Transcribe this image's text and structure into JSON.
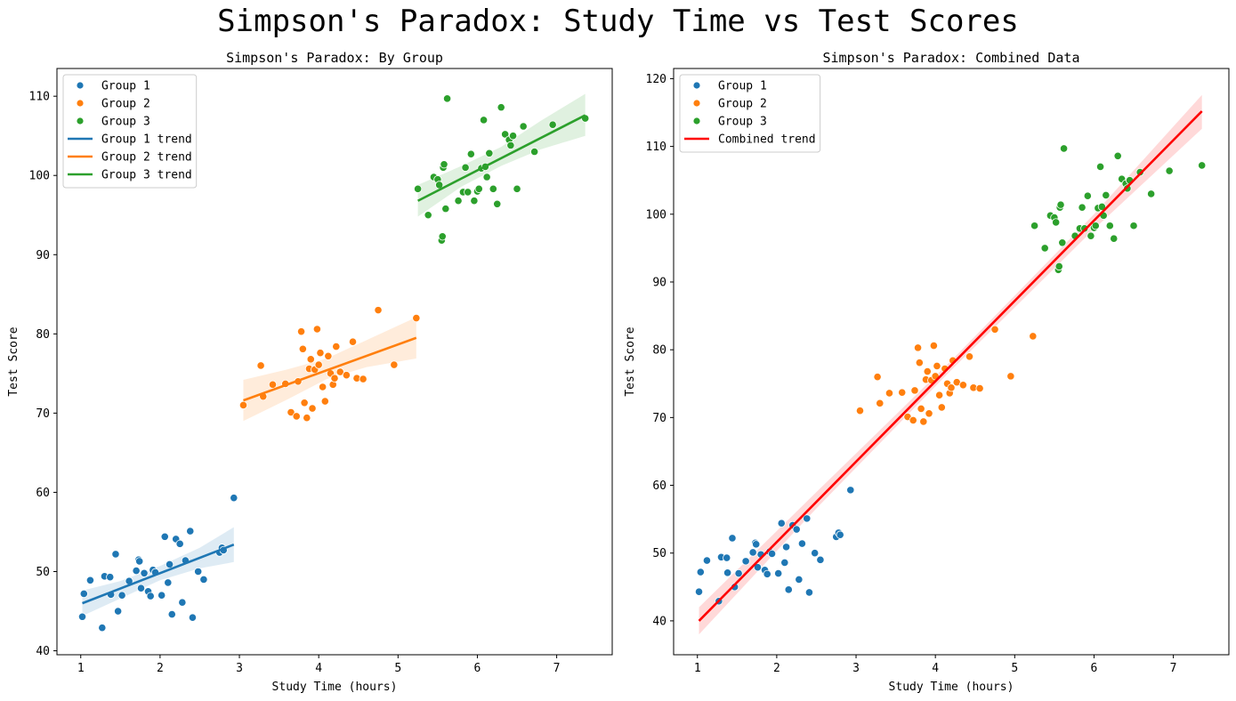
{
  "suptitle": "Simpson's Paradox: Study Time vs Test Scores",
  "colors": {
    "group1": "#1f77b4",
    "group2": "#ff7f0e",
    "group3": "#2ca02c",
    "combined": "#ff0000"
  },
  "chart_data": [
    {
      "type": "scatter",
      "title": "Simpson's Paradox: By Group",
      "xlabel": "Study Time (hours)",
      "ylabel": "Test Score",
      "xlim": [
        0.7,
        7.7
      ],
      "ylim": [
        39.5,
        113.5
      ],
      "xticks": [
        1,
        2,
        3,
        4,
        5,
        6,
        7
      ],
      "yticks": [
        40,
        50,
        60,
        70,
        80,
        90,
        100,
        110
      ],
      "grid": false,
      "legend_position": "upper-left",
      "legend": [
        "Group 1",
        "Group 2",
        "Group 3",
        "Group 1 trend",
        "Group 2 trend",
        "Group 3 trend"
      ],
      "series": [
        {
          "name": "Group 1",
          "color": "#1f77b4",
          "points": [
            [
              1.02,
              44.3
            ],
            [
              1.04,
              47.2
            ],
            [
              1.12,
              48.9
            ],
            [
              1.27,
              42.9
            ],
            [
              1.3,
              49.4
            ],
            [
              1.37,
              49.3
            ],
            [
              1.38,
              47.1
            ],
            [
              1.44,
              52.2
            ],
            [
              1.47,
              45.0
            ],
            [
              1.52,
              47.0
            ],
            [
              1.61,
              48.8
            ],
            [
              1.7,
              50.1
            ],
            [
              1.73,
              51.5
            ],
            [
              1.74,
              51.3
            ],
            [
              1.76,
              47.9
            ],
            [
              1.8,
              49.8
            ],
            [
              1.85,
              47.5
            ],
            [
              1.88,
              46.9
            ],
            [
              1.91,
              50.2
            ],
            [
              1.94,
              49.9
            ],
            [
              2.02,
              47.0
            ],
            [
              2.06,
              54.4
            ],
            [
              2.1,
              48.6
            ],
            [
              2.12,
              50.9
            ],
            [
              2.15,
              44.6
            ],
            [
              2.2,
              54.1
            ],
            [
              2.25,
              53.5
            ],
            [
              2.28,
              46.1
            ],
            [
              2.32,
              51.4
            ],
            [
              2.38,
              55.1
            ],
            [
              2.41,
              44.2
            ],
            [
              2.48,
              50.0
            ],
            [
              2.55,
              49.0
            ],
            [
              2.75,
              52.4
            ],
            [
              2.78,
              53.0
            ],
            [
              2.8,
              52.7
            ],
            [
              2.93,
              59.3
            ]
          ]
        },
        {
          "name": "Group 2",
          "color": "#ff7f0e",
          "points": [
            [
              3.05,
              71.0
            ],
            [
              3.27,
              76.0
            ],
            [
              3.3,
              72.1
            ],
            [
              3.42,
              73.6
            ],
            [
              3.58,
              73.7
            ],
            [
              3.65,
              70.1
            ],
            [
              3.72,
              69.6
            ],
            [
              3.74,
              74.0
            ],
            [
              3.78,
              80.3
            ],
            [
              3.8,
              78.1
            ],
            [
              3.82,
              71.3
            ],
            [
              3.85,
              69.4
            ],
            [
              3.88,
              75.6
            ],
            [
              3.9,
              76.8
            ],
            [
              3.92,
              70.6
            ],
            [
              3.95,
              75.5
            ],
            [
              3.98,
              80.6
            ],
            [
              4.0,
              76.1
            ],
            [
              4.02,
              77.6
            ],
            [
              4.05,
              73.3
            ],
            [
              4.08,
              71.5
            ],
            [
              4.12,
              77.2
            ],
            [
              4.15,
              75.0
            ],
            [
              4.18,
              73.6
            ],
            [
              4.2,
              74.4
            ],
            [
              4.22,
              78.4
            ],
            [
              4.27,
              75.2
            ],
            [
              4.35,
              74.8
            ],
            [
              4.43,
              79.0
            ],
            [
              4.48,
              74.4
            ],
            [
              4.56,
              74.3
            ],
            [
              4.75,
              83.0
            ],
            [
              4.95,
              76.1
            ],
            [
              5.23,
              82.0
            ]
          ]
        },
        {
          "name": "Group 3",
          "color": "#2ca02c",
          "points": [
            [
              5.25,
              98.3
            ],
            [
              5.38,
              95.0
            ],
            [
              5.45,
              99.8
            ],
            [
              5.5,
              99.5
            ],
            [
              5.52,
              98.8
            ],
            [
              5.55,
              91.8
            ],
            [
              5.56,
              92.3
            ],
            [
              5.57,
              101.0
            ],
            [
              5.58,
              101.4
            ],
            [
              5.6,
              95.8
            ],
            [
              5.62,
              109.7
            ],
            [
              5.76,
              96.8
            ],
            [
              5.82,
              97.9
            ],
            [
              5.85,
              101.0
            ],
            [
              5.88,
              97.9
            ],
            [
              5.92,
              102.7
            ],
            [
              5.96,
              96.8
            ],
            [
              6.0,
              98.0
            ],
            [
              6.02,
              98.3
            ],
            [
              6.05,
              100.9
            ],
            [
              6.08,
              107.0
            ],
            [
              6.1,
              101.1
            ],
            [
              6.12,
              99.8
            ],
            [
              6.15,
              102.8
            ],
            [
              6.2,
              98.3
            ],
            [
              6.25,
              96.4
            ],
            [
              6.3,
              108.6
            ],
            [
              6.35,
              105.2
            ],
            [
              6.4,
              104.5
            ],
            [
              6.42,
              103.8
            ],
            [
              6.45,
              105.0
            ],
            [
              6.5,
              98.3
            ],
            [
              6.58,
              106.2
            ],
            [
              6.72,
              103.0
            ],
            [
              6.95,
              106.4
            ],
            [
              7.36,
              107.2
            ]
          ]
        }
      ],
      "trends": [
        {
          "name": "Group 1 trend",
          "color": "#1f77b4",
          "x": [
            1.02,
            2.93
          ],
          "y": [
            46.0,
            53.4
          ],
          "ci": [
            [
              1.02,
              44.4,
              47.6
            ],
            [
              1.5,
              46.6,
              48.8
            ],
            [
              2.0,
              48.9,
              50.7
            ],
            [
              2.5,
              50.4,
              53.0
            ],
            [
              2.93,
              51.2,
              55.6
            ]
          ]
        },
        {
          "name": "Group 2 trend",
          "color": "#ff7f0e",
          "x": [
            3.05,
            5.23
          ],
          "y": [
            71.6,
            79.5
          ],
          "ci": [
            [
              3.05,
              69.0,
              74.2
            ],
            [
              3.6,
              71.7,
              75.5
            ],
            [
              4.1,
              74.3,
              76.9
            ],
            [
              4.6,
              75.8,
              79.2
            ],
            [
              5.23,
              76.9,
              82.1
            ]
          ]
        },
        {
          "name": "Group 3 trend",
          "color": "#2ca02c",
          "x": [
            5.25,
            7.36
          ],
          "y": [
            96.8,
            107.6
          ],
          "ci": [
            [
              5.25,
              94.8,
              98.8
            ],
            [
              5.8,
              98.6,
              101.2
            ],
            [
              6.3,
              101.2,
              103.6
            ],
            [
              6.8,
              103.3,
              106.9
            ],
            [
              7.36,
              105.0,
              110.3
            ]
          ]
        }
      ]
    },
    {
      "type": "scatter",
      "title": "Simpson's Paradox: Combined Data",
      "xlabel": "Study Time (hours)",
      "ylabel": "Test Score",
      "xlim": [
        0.7,
        7.7
      ],
      "ylim": [
        35.0,
        121.5
      ],
      "xticks": [
        1,
        2,
        3,
        4,
        5,
        6,
        7
      ],
      "yticks": [
        40,
        50,
        60,
        70,
        80,
        90,
        100,
        110,
        120
      ],
      "grid": false,
      "legend_position": "upper-left",
      "legend": [
        "Group 1",
        "Group 2",
        "Group 3",
        "Combined trend"
      ],
      "series": [
        {
          "name": "Group 1",
          "color": "#1f77b4",
          "points": [
            [
              1.02,
              44.3
            ],
            [
              1.04,
              47.2
            ],
            [
              1.12,
              48.9
            ],
            [
              1.27,
              42.9
            ],
            [
              1.3,
              49.4
            ],
            [
              1.37,
              49.3
            ],
            [
              1.38,
              47.1
            ],
            [
              1.44,
              52.2
            ],
            [
              1.47,
              45.0
            ],
            [
              1.52,
              47.0
            ],
            [
              1.61,
              48.8
            ],
            [
              1.7,
              50.1
            ],
            [
              1.73,
              51.5
            ],
            [
              1.74,
              51.3
            ],
            [
              1.76,
              47.9
            ],
            [
              1.8,
              49.8
            ],
            [
              1.85,
              47.5
            ],
            [
              1.88,
              46.9
            ],
            [
              1.91,
              50.2
            ],
            [
              1.94,
              49.9
            ],
            [
              2.02,
              47.0
            ],
            [
              2.06,
              54.4
            ],
            [
              2.1,
              48.6
            ],
            [
              2.12,
              50.9
            ],
            [
              2.15,
              44.6
            ],
            [
              2.2,
              54.1
            ],
            [
              2.25,
              53.5
            ],
            [
              2.28,
              46.1
            ],
            [
              2.32,
              51.4
            ],
            [
              2.38,
              55.1
            ],
            [
              2.41,
              44.2
            ],
            [
              2.48,
              50.0
            ],
            [
              2.55,
              49.0
            ],
            [
              2.75,
              52.4
            ],
            [
              2.78,
              53.0
            ],
            [
              2.8,
              52.7
            ],
            [
              2.93,
              59.3
            ]
          ]
        },
        {
          "name": "Group 2",
          "color": "#ff7f0e",
          "points": [
            [
              3.05,
              71.0
            ],
            [
              3.27,
              76.0
            ],
            [
              3.3,
              72.1
            ],
            [
              3.42,
              73.6
            ],
            [
              3.58,
              73.7
            ],
            [
              3.65,
              70.1
            ],
            [
              3.72,
              69.6
            ],
            [
              3.74,
              74.0
            ],
            [
              3.78,
              80.3
            ],
            [
              3.8,
              78.1
            ],
            [
              3.82,
              71.3
            ],
            [
              3.85,
              69.4
            ],
            [
              3.88,
              75.6
            ],
            [
              3.9,
              76.8
            ],
            [
              3.92,
              70.6
            ],
            [
              3.95,
              75.5
            ],
            [
              3.98,
              80.6
            ],
            [
              4.0,
              76.1
            ],
            [
              4.02,
              77.6
            ],
            [
              4.05,
              73.3
            ],
            [
              4.08,
              71.5
            ],
            [
              4.12,
              77.2
            ],
            [
              4.15,
              75.0
            ],
            [
              4.18,
              73.6
            ],
            [
              4.2,
              74.4
            ],
            [
              4.22,
              78.4
            ],
            [
              4.27,
              75.2
            ],
            [
              4.35,
              74.8
            ],
            [
              4.43,
              79.0
            ],
            [
              4.48,
              74.4
            ],
            [
              4.56,
              74.3
            ],
            [
              4.75,
              83.0
            ],
            [
              4.95,
              76.1
            ],
            [
              5.23,
              82.0
            ]
          ]
        },
        {
          "name": "Group 3",
          "color": "#2ca02c",
          "points": [
            [
              5.25,
              98.3
            ],
            [
              5.38,
              95.0
            ],
            [
              5.45,
              99.8
            ],
            [
              5.5,
              99.5
            ],
            [
              5.52,
              98.8
            ],
            [
              5.55,
              91.8
            ],
            [
              5.56,
              92.3
            ],
            [
              5.57,
              101.0
            ],
            [
              5.58,
              101.4
            ],
            [
              5.6,
              95.8
            ],
            [
              5.62,
              109.7
            ],
            [
              5.76,
              96.8
            ],
            [
              5.82,
              97.9
            ],
            [
              5.85,
              101.0
            ],
            [
              5.88,
              97.9
            ],
            [
              5.92,
              102.7
            ],
            [
              5.96,
              96.8
            ],
            [
              6.0,
              98.0
            ],
            [
              6.02,
              98.3
            ],
            [
              6.05,
              100.9
            ],
            [
              6.08,
              107.0
            ],
            [
              6.1,
              101.1
            ],
            [
              6.12,
              99.8
            ],
            [
              6.15,
              102.8
            ],
            [
              6.2,
              98.3
            ],
            [
              6.25,
              96.4
            ],
            [
              6.3,
              108.6
            ],
            [
              6.35,
              105.2
            ],
            [
              6.4,
              104.5
            ],
            [
              6.42,
              103.8
            ],
            [
              6.45,
              105.0
            ],
            [
              6.5,
              98.3
            ],
            [
              6.58,
              106.2
            ],
            [
              6.72,
              103.0
            ],
            [
              6.95,
              106.4
            ],
            [
              7.36,
              107.2
            ]
          ]
        }
      ],
      "trends": [
        {
          "name": "Combined trend",
          "color": "#ff0000",
          "x": [
            1.02,
            7.36
          ],
          "y": [
            40.0,
            115.2
          ],
          "ci": [
            [
              1.02,
              38.0,
              42.0
            ],
            [
              2.5,
              56.6,
              59.0
            ],
            [
              4.2,
              77.0,
              78.4
            ],
            [
              6.0,
              97.8,
              100.0
            ],
            [
              7.36,
              112.6,
              117.6
            ]
          ]
        }
      ]
    }
  ]
}
